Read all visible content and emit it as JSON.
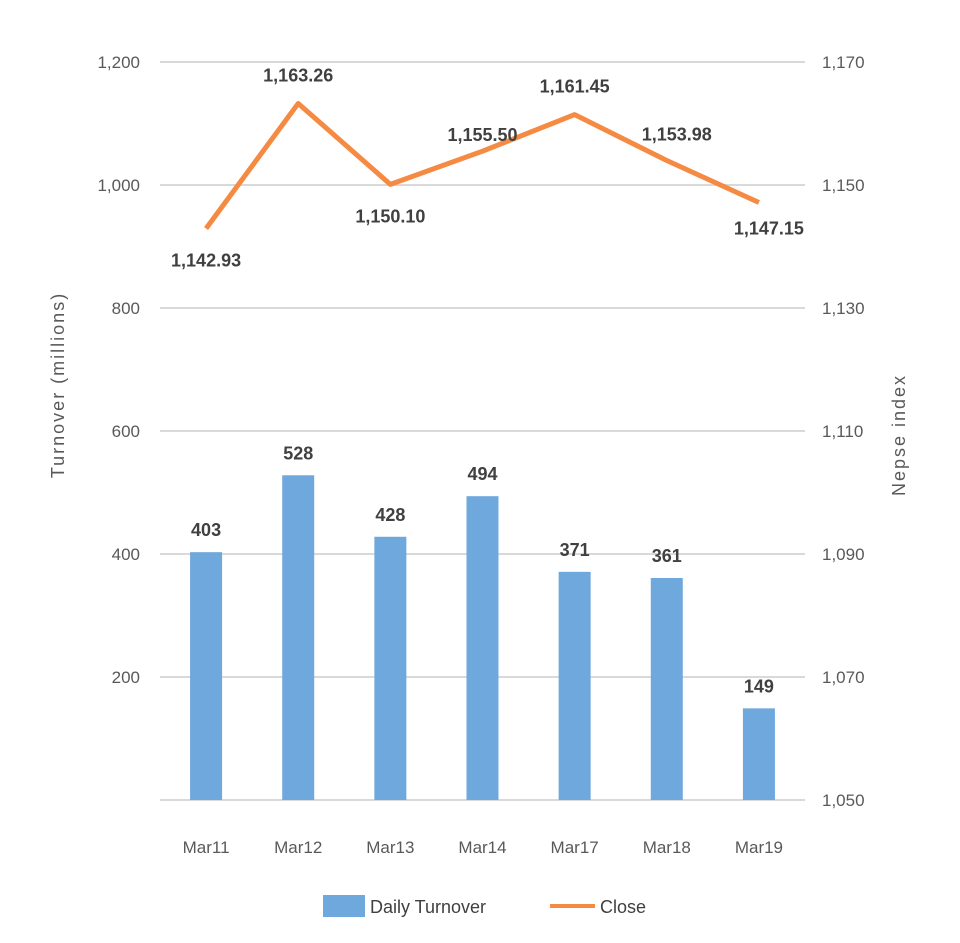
{
  "chart_data": {
    "type": "bar+line",
    "categories": [
      "Mar11",
      "Mar12",
      "Mar13",
      "Mar14",
      "Mar17",
      "Mar18",
      "Mar19"
    ],
    "series": [
      {
        "name": "Daily Turnover",
        "type": "bar",
        "axis": "left",
        "color": "#6FA8DC",
        "values": [
          403,
          528,
          428,
          494,
          371,
          361,
          149
        ],
        "labels": [
          "403",
          "528",
          "428",
          "494",
          "371",
          "361",
          "149"
        ]
      },
      {
        "name": "Close",
        "type": "line",
        "axis": "right",
        "color": "#F58A42",
        "values": [
          1142.93,
          1163.26,
          1150.1,
          1155.5,
          1161.45,
          1153.98,
          1147.15
        ],
        "labels": [
          "1,142.93",
          "1,163.26",
          "1,150.10",
          "1,155.50",
          "1,161.45",
          "1,153.98",
          "1,147.15"
        ]
      }
    ],
    "ylabel": "Turnover (millions)",
    "y2label": "Nepse index",
    "ylim": [
      0,
      1200
    ],
    "y2lim": [
      1050,
      1170
    ],
    "yticks": [
      "200",
      "400",
      "600",
      "800",
      "1,000",
      "1,200"
    ],
    "yticks_values": [
      200,
      400,
      600,
      800,
      1000,
      1200
    ],
    "y2ticks": [
      "1,050",
      "1,070",
      "1,090",
      "1,110",
      "1,130",
      "1,150",
      "1,170"
    ],
    "y2ticks_values": [
      1050,
      1070,
      1090,
      1110,
      1130,
      1150,
      1170
    ],
    "grid": true,
    "legend": "bottom"
  }
}
